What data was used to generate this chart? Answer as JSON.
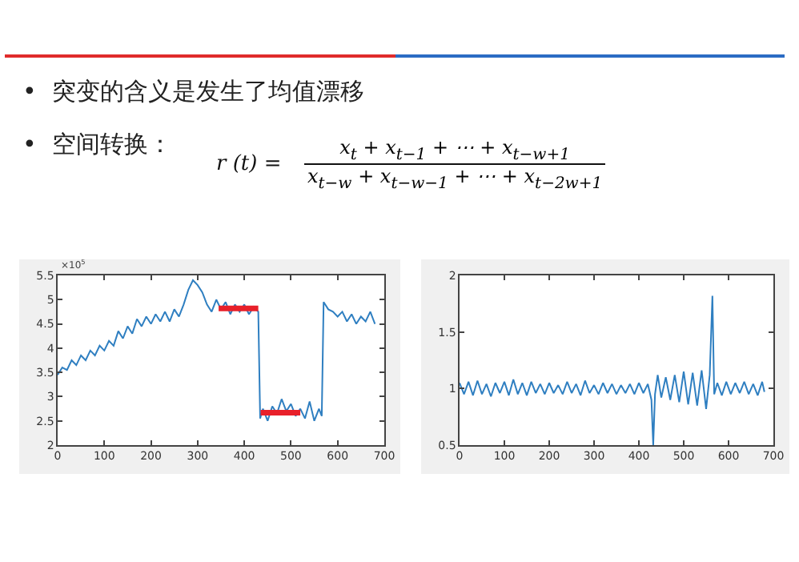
{
  "chart_data": [
    {
      "type": "other",
      "annotations": [
        "•  突变的含义是发生了均值漂移",
        "•  空间转换：",
        "r (t) =",
        "x$_{t}$ + x$_{t−1}$ + ⋯ + x$_{t−w+1}$",
        "x$_{t−w}$ + x$_{t−w−1}$ + ⋯ + x$_{t−2w+1}$"
      ]
    },
    {
      "type": "line",
      "xlim": [
        0,
        700
      ],
      "xticks": [
        0,
        100,
        200,
        300,
        400,
        500,
        600,
        700
      ],
      "ylim": [
        2,
        5.5
      ],
      "yticks": [
        2,
        2.5,
        3,
        3.5,
        4,
        4.5,
        5,
        5.5
      ],
      "grid": false,
      "annotations": [
        "×10$^{5}$"
      ],
      "series": [
        {
          "color": "#2f7fc1",
          "x": [
            0,
            10,
            20,
            30,
            40,
            50,
            60,
            70,
            80,
            90,
            100,
            110,
            120,
            130,
            140,
            150,
            160,
            170,
            180,
            190,
            200,
            210,
            220,
            230,
            240,
            250,
            260,
            270,
            280,
            290,
            300,
            310,
            320,
            330,
            340,
            350,
            360,
            370,
            380,
            390,
            400,
            410,
            420,
            430,
            434,
            440,
            450,
            460,
            470,
            480,
            490,
            500,
            510,
            520,
            530,
            540,
            550,
            560,
            566,
            570,
            580,
            590,
            600,
            610,
            620,
            630,
            640,
            650,
            660,
            670,
            680
          ],
          "values": [
            3.45,
            3.6,
            3.55,
            3.75,
            3.65,
            3.85,
            3.75,
            3.95,
            3.85,
            4.05,
            3.95,
            4.15,
            4.05,
            4.35,
            4.2,
            4.45,
            4.3,
            4.6,
            4.45,
            4.65,
            4.5,
            4.7,
            4.55,
            4.75,
            4.55,
            4.8,
            4.65,
            4.9,
            5.2,
            5.4,
            5.3,
            5.15,
            4.9,
            4.75,
            5.0,
            4.8,
            4.95,
            4.7,
            4.9,
            4.75,
            4.9,
            4.7,
            4.85,
            4.75,
            2.55,
            2.75,
            2.5,
            2.8,
            2.65,
            2.95,
            2.7,
            2.85,
            2.6,
            2.75,
            2.55,
            2.9,
            2.5,
            2.75,
            2.6,
            4.95,
            4.8,
            4.75,
            4.65,
            4.75,
            4.55,
            4.7,
            4.5,
            4.65,
            4.55,
            4.75,
            4.5
          ]
        },
        {
          "color": "#e8202a",
          "x": [
            345,
            430,
            432,
            435,
            520
          ],
          "values": [
            4.82,
            4.82,
            null,
            2.67,
            2.67
          ]
        }
      ]
    },
    {
      "type": "line",
      "xlim": [
        0,
        700
      ],
      "xticks": [
        0,
        100,
        200,
        300,
        400,
        500,
        600,
        700
      ],
      "ylim": [
        0.5,
        2
      ],
      "yticks": [
        0.5,
        1,
        1.5,
        2
      ],
      "grid": false,
      "series": [
        {
          "color": "#2f7fc1",
          "x": [
            0,
            10,
            20,
            30,
            40,
            50,
            60,
            70,
            80,
            90,
            100,
            110,
            120,
            130,
            140,
            150,
            160,
            170,
            180,
            190,
            200,
            210,
            220,
            230,
            240,
            250,
            260,
            270,
            280,
            290,
            300,
            310,
            320,
            330,
            340,
            350,
            360,
            370,
            380,
            390,
            400,
            410,
            420,
            428,
            432,
            436,
            442,
            450,
            460,
            470,
            480,
            490,
            500,
            510,
            520,
            530,
            540,
            550,
            558,
            564,
            568,
            575,
            585,
            595,
            605,
            615,
            625,
            635,
            645,
            655,
            665,
            675,
            680
          ],
          "values": [
            1.05,
            0.95,
            1.06,
            0.94,
            1.07,
            0.95,
            1.04,
            0.93,
            1.05,
            0.96,
            1.06,
            0.94,
            1.08,
            0.95,
            1.05,
            0.94,
            1.06,
            0.96,
            1.04,
            0.95,
            1.05,
            0.96,
            1.03,
            0.95,
            1.06,
            0.96,
            1.04,
            0.94,
            1.07,
            0.96,
            1.03,
            0.95,
            1.05,
            0.96,
            1.04,
            0.95,
            1.03,
            0.96,
            1.04,
            0.95,
            1.05,
            0.96,
            1.04,
            0.9,
            0.5,
            0.95,
            1.12,
            0.92,
            1.1,
            0.9,
            1.12,
            0.88,
            1.15,
            0.86,
            1.14,
            0.85,
            1.16,
            0.82,
            1.12,
            1.82,
            0.95,
            1.05,
            0.94,
            1.06,
            0.95,
            1.05,
            0.96,
            1.06,
            0.95,
            1.04,
            0.94,
            1.06,
            0.97
          ]
        }
      ]
    }
  ]
}
